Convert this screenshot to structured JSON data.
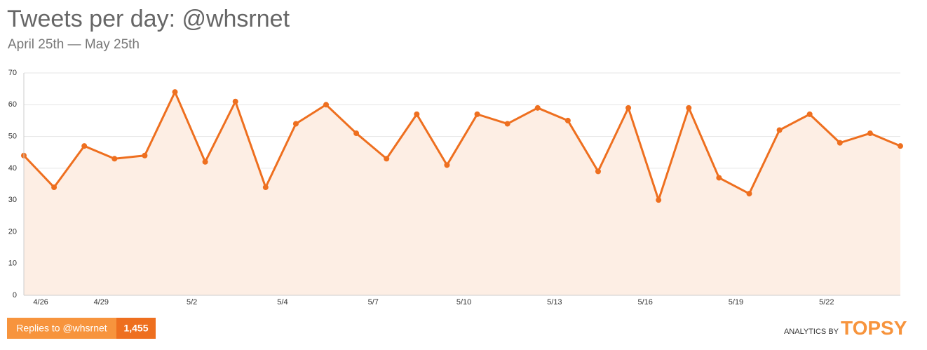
{
  "chart_data": {
    "type": "line",
    "title": "Tweets per day: @whsrnet",
    "subtitle": "April 25th — May 25th",
    "categories": [
      null,
      "4/26",
      null,
      "4/29",
      null,
      null,
      "5/2",
      null,
      null,
      "5/4",
      null,
      null,
      "5/7",
      null,
      null,
      "5/10",
      null,
      null,
      "5/13",
      null,
      null,
      "5/16",
      null,
      null,
      "5/19",
      null,
      null,
      "5/22",
      null,
      null
    ],
    "series": [
      {
        "name": "Tweets",
        "color": "#ee6f1f",
        "values": [
          44,
          34,
          47,
          43,
          44,
          64,
          42,
          61,
          34,
          54,
          60,
          51,
          43,
          57,
          41,
          57,
          54,
          59,
          55,
          39,
          59,
          30,
          59,
          37,
          32,
          52,
          57,
          48,
          51,
          47
        ]
      }
    ],
    "area_color": "#fdeee4",
    "ylim": [
      0,
      70
    ],
    "yticks": [
      0,
      10,
      20,
      30,
      40,
      50,
      60,
      70
    ],
    "grid": true,
    "button_label": "Replies to @whsrnet",
    "button_count": "1,455",
    "credit_prefix": "ANALYTICS BY",
    "credit_brand": "TOPSY"
  }
}
